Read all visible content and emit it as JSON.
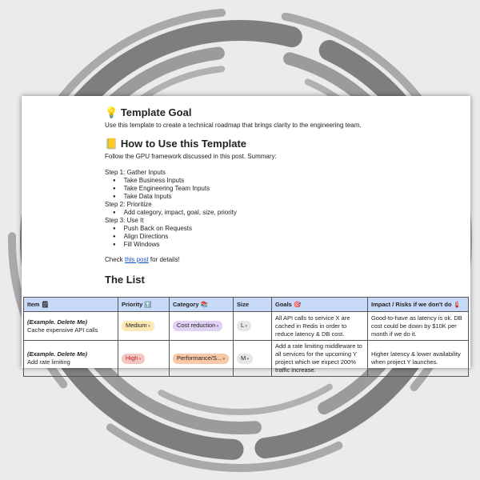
{
  "doc": {
    "goal_heading": "Template Goal",
    "goal_icon": "lightbulb-icon",
    "goal_text": "Use this template to create a technical roadmap that brings clarity to the engineering team.",
    "howto_heading": "How to Use this Template",
    "howto_icon": "notebook-icon",
    "howto_intro": "Follow the GPU framework discussed in this post. Summary:",
    "steps": [
      {
        "title": "Step 1: Gather Inputs",
        "items": [
          "Take Business Inputs",
          "Take Engineering Team Inputs",
          "Take Data Inputs"
        ]
      },
      {
        "title": "Step 2: Prioritize",
        "items": [
          "Add category, impact, goal, size, priority"
        ]
      },
      {
        "title": "Step 3: Use It",
        "items": [
          "Push Back on Requests",
          "Align Directions",
          "Fill Windows"
        ]
      }
    ],
    "check_prefix": "Check ",
    "check_link": "this post",
    "check_suffix": " for details!",
    "list_heading": "The List"
  },
  "table": {
    "headers": [
      "Item",
      "Priority",
      "Category",
      "Size",
      "Goals",
      "Impact / Risks if we don't do"
    ],
    "header_icons": [
      "memo-icon",
      "arrow-up-icon",
      "books-icon",
      "",
      "target-icon",
      "fire-extinguisher-icon"
    ],
    "rows": [
      {
        "label": "(Example. Delete Me)",
        "item": "Cache expensive API calls",
        "priority": "Medium",
        "category": "Cost reduction",
        "size": "L",
        "goals": "All API calls to service X are cached in Redis in order to reduce latency & DB cost.",
        "impact": "Good-to-have as latency is ok. DB cost could be down by $10K per month if we do it."
      },
      {
        "label": "(Example. Delete Me)",
        "item": "Add rate limiting",
        "priority": "High",
        "category": "Performance/S...",
        "size": "M",
        "goals": "Add a rate limiting middleware to all services for the upcoming Y project which we expect 200% traffic increase.",
        "impact": "Higher latency & lower availability when project Y launches."
      }
    ]
  },
  "colors": {
    "header_bg": "#c9daf8",
    "medium": "#fce8b2",
    "high": "#f4c7c3",
    "cost": "#e1d1f5",
    "perf": "#f9c8a8",
    "size": "#e6e6e6",
    "link": "#1155cc"
  }
}
